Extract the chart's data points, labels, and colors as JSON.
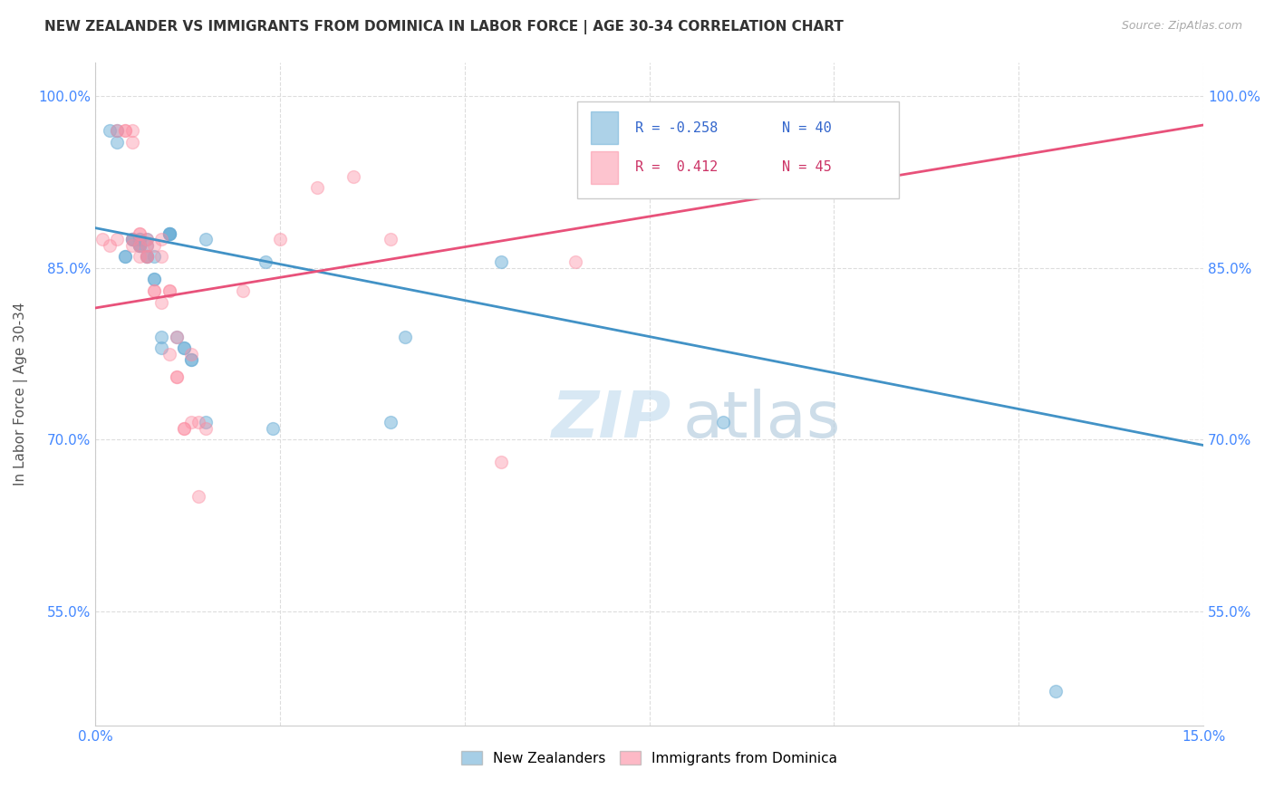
{
  "title": "NEW ZEALANDER VS IMMIGRANTS FROM DOMINICA IN LABOR FORCE | AGE 30-34 CORRELATION CHART",
  "source": "Source: ZipAtlas.com",
  "ylabel": "In Labor Force | Age 30-34",
  "xmin": 0.0,
  "xmax": 0.15,
  "ymin": 0.45,
  "ymax": 1.03,
  "yticks": [
    0.55,
    0.7,
    0.85,
    1.0
  ],
  "ytick_labels": [
    "55.0%",
    "70.0%",
    "85.0%",
    "100.0%"
  ],
  "xticks": [
    0.0,
    0.025,
    0.05,
    0.075,
    0.1,
    0.125,
    0.15
  ],
  "xtick_labels": [
    "0.0%",
    "",
    "",
    "",
    "",
    "",
    "15.0%"
  ],
  "legend_r_blue": "R = -0.258",
  "legend_n_blue": "N = 40",
  "legend_r_pink": "R =  0.412",
  "legend_n_pink": "N = 45",
  "blue_color": "#6baed6",
  "pink_color": "#fc8ba0",
  "blue_line_color": "#4292c6",
  "pink_line_color": "#e8517a",
  "watermark_zip": "ZIP",
  "watermark_atlas": "atlas",
  "blue_scatter_x": [
    0.002,
    0.003,
    0.003,
    0.004,
    0.004,
    0.005,
    0.005,
    0.005,
    0.006,
    0.006,
    0.006,
    0.006,
    0.006,
    0.007,
    0.007,
    0.007,
    0.007,
    0.008,
    0.008,
    0.008,
    0.009,
    0.009,
    0.01,
    0.01,
    0.01,
    0.01,
    0.011,
    0.012,
    0.012,
    0.013,
    0.013,
    0.015,
    0.015,
    0.023,
    0.024,
    0.04,
    0.042,
    0.055,
    0.085,
    0.13
  ],
  "blue_scatter_y": [
    0.97,
    0.97,
    0.96,
    0.86,
    0.86,
    0.875,
    0.875,
    0.875,
    0.875,
    0.87,
    0.87,
    0.875,
    0.87,
    0.875,
    0.87,
    0.86,
    0.86,
    0.86,
    0.84,
    0.84,
    0.79,
    0.78,
    0.88,
    0.88,
    0.88,
    0.88,
    0.79,
    0.78,
    0.78,
    0.77,
    0.77,
    0.715,
    0.875,
    0.855,
    0.71,
    0.715,
    0.79,
    0.855,
    0.715,
    0.48
  ],
  "pink_scatter_x": [
    0.001,
    0.002,
    0.003,
    0.003,
    0.004,
    0.004,
    0.005,
    0.005,
    0.005,
    0.005,
    0.006,
    0.006,
    0.006,
    0.006,
    0.007,
    0.007,
    0.007,
    0.007,
    0.008,
    0.008,
    0.008,
    0.009,
    0.009,
    0.009,
    0.01,
    0.01,
    0.01,
    0.011,
    0.011,
    0.011,
    0.012,
    0.012,
    0.013,
    0.013,
    0.014,
    0.014,
    0.015,
    0.02,
    0.025,
    0.03,
    0.035,
    0.04,
    0.055,
    0.065,
    0.09
  ],
  "pink_scatter_y": [
    0.875,
    0.87,
    0.875,
    0.97,
    0.97,
    0.97,
    0.97,
    0.875,
    0.87,
    0.96,
    0.88,
    0.88,
    0.87,
    0.86,
    0.875,
    0.87,
    0.86,
    0.86,
    0.87,
    0.83,
    0.83,
    0.875,
    0.86,
    0.82,
    0.83,
    0.83,
    0.775,
    0.79,
    0.755,
    0.755,
    0.71,
    0.71,
    0.775,
    0.715,
    0.715,
    0.65,
    0.71,
    0.83,
    0.875,
    0.92,
    0.93,
    0.875,
    0.68,
    0.855,
    0.97
  ],
  "blue_trend_x": [
    0.0,
    0.15
  ],
  "blue_trend_y": [
    0.885,
    0.695
  ],
  "pink_trend_x": [
    0.0,
    0.15
  ],
  "pink_trend_y": [
    0.815,
    0.975
  ]
}
